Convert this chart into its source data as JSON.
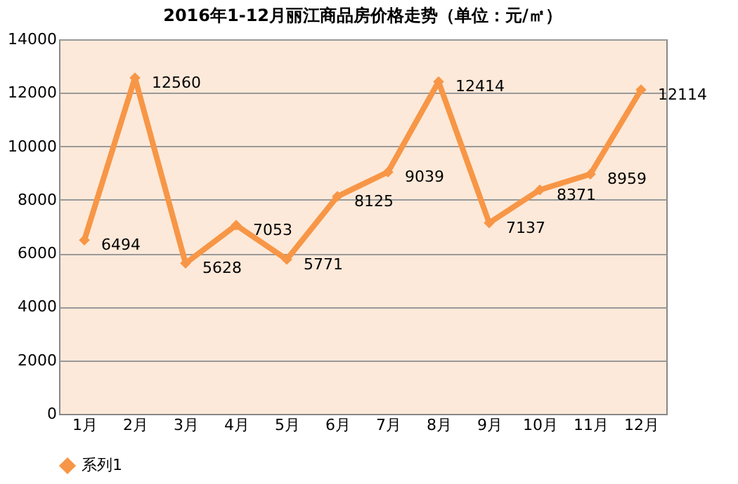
{
  "chart_data": {
    "type": "line",
    "title": "2016年1-12月丽江商品房价格走势（单位：元/㎡）",
    "categories": [
      "1月",
      "2月",
      "3月",
      "4月",
      "5月",
      "6月",
      "7月",
      "8月",
      "9月",
      "10月",
      "11月",
      "12月"
    ],
    "series": [
      {
        "name": "系列1",
        "color": "#f79646",
        "values": [
          6494,
          12560,
          5628,
          7053,
          5771,
          8125,
          9039,
          12414,
          7137,
          8371,
          8959,
          12114
        ]
      }
    ],
    "ylim": [
      0,
      14000
    ],
    "yticks": [
      0,
      2000,
      4000,
      6000,
      8000,
      10000,
      12000,
      14000
    ],
    "grid": "y",
    "legend": "bottom",
    "marker": "diamond",
    "line_style": "solid",
    "data_labels": true
  }
}
